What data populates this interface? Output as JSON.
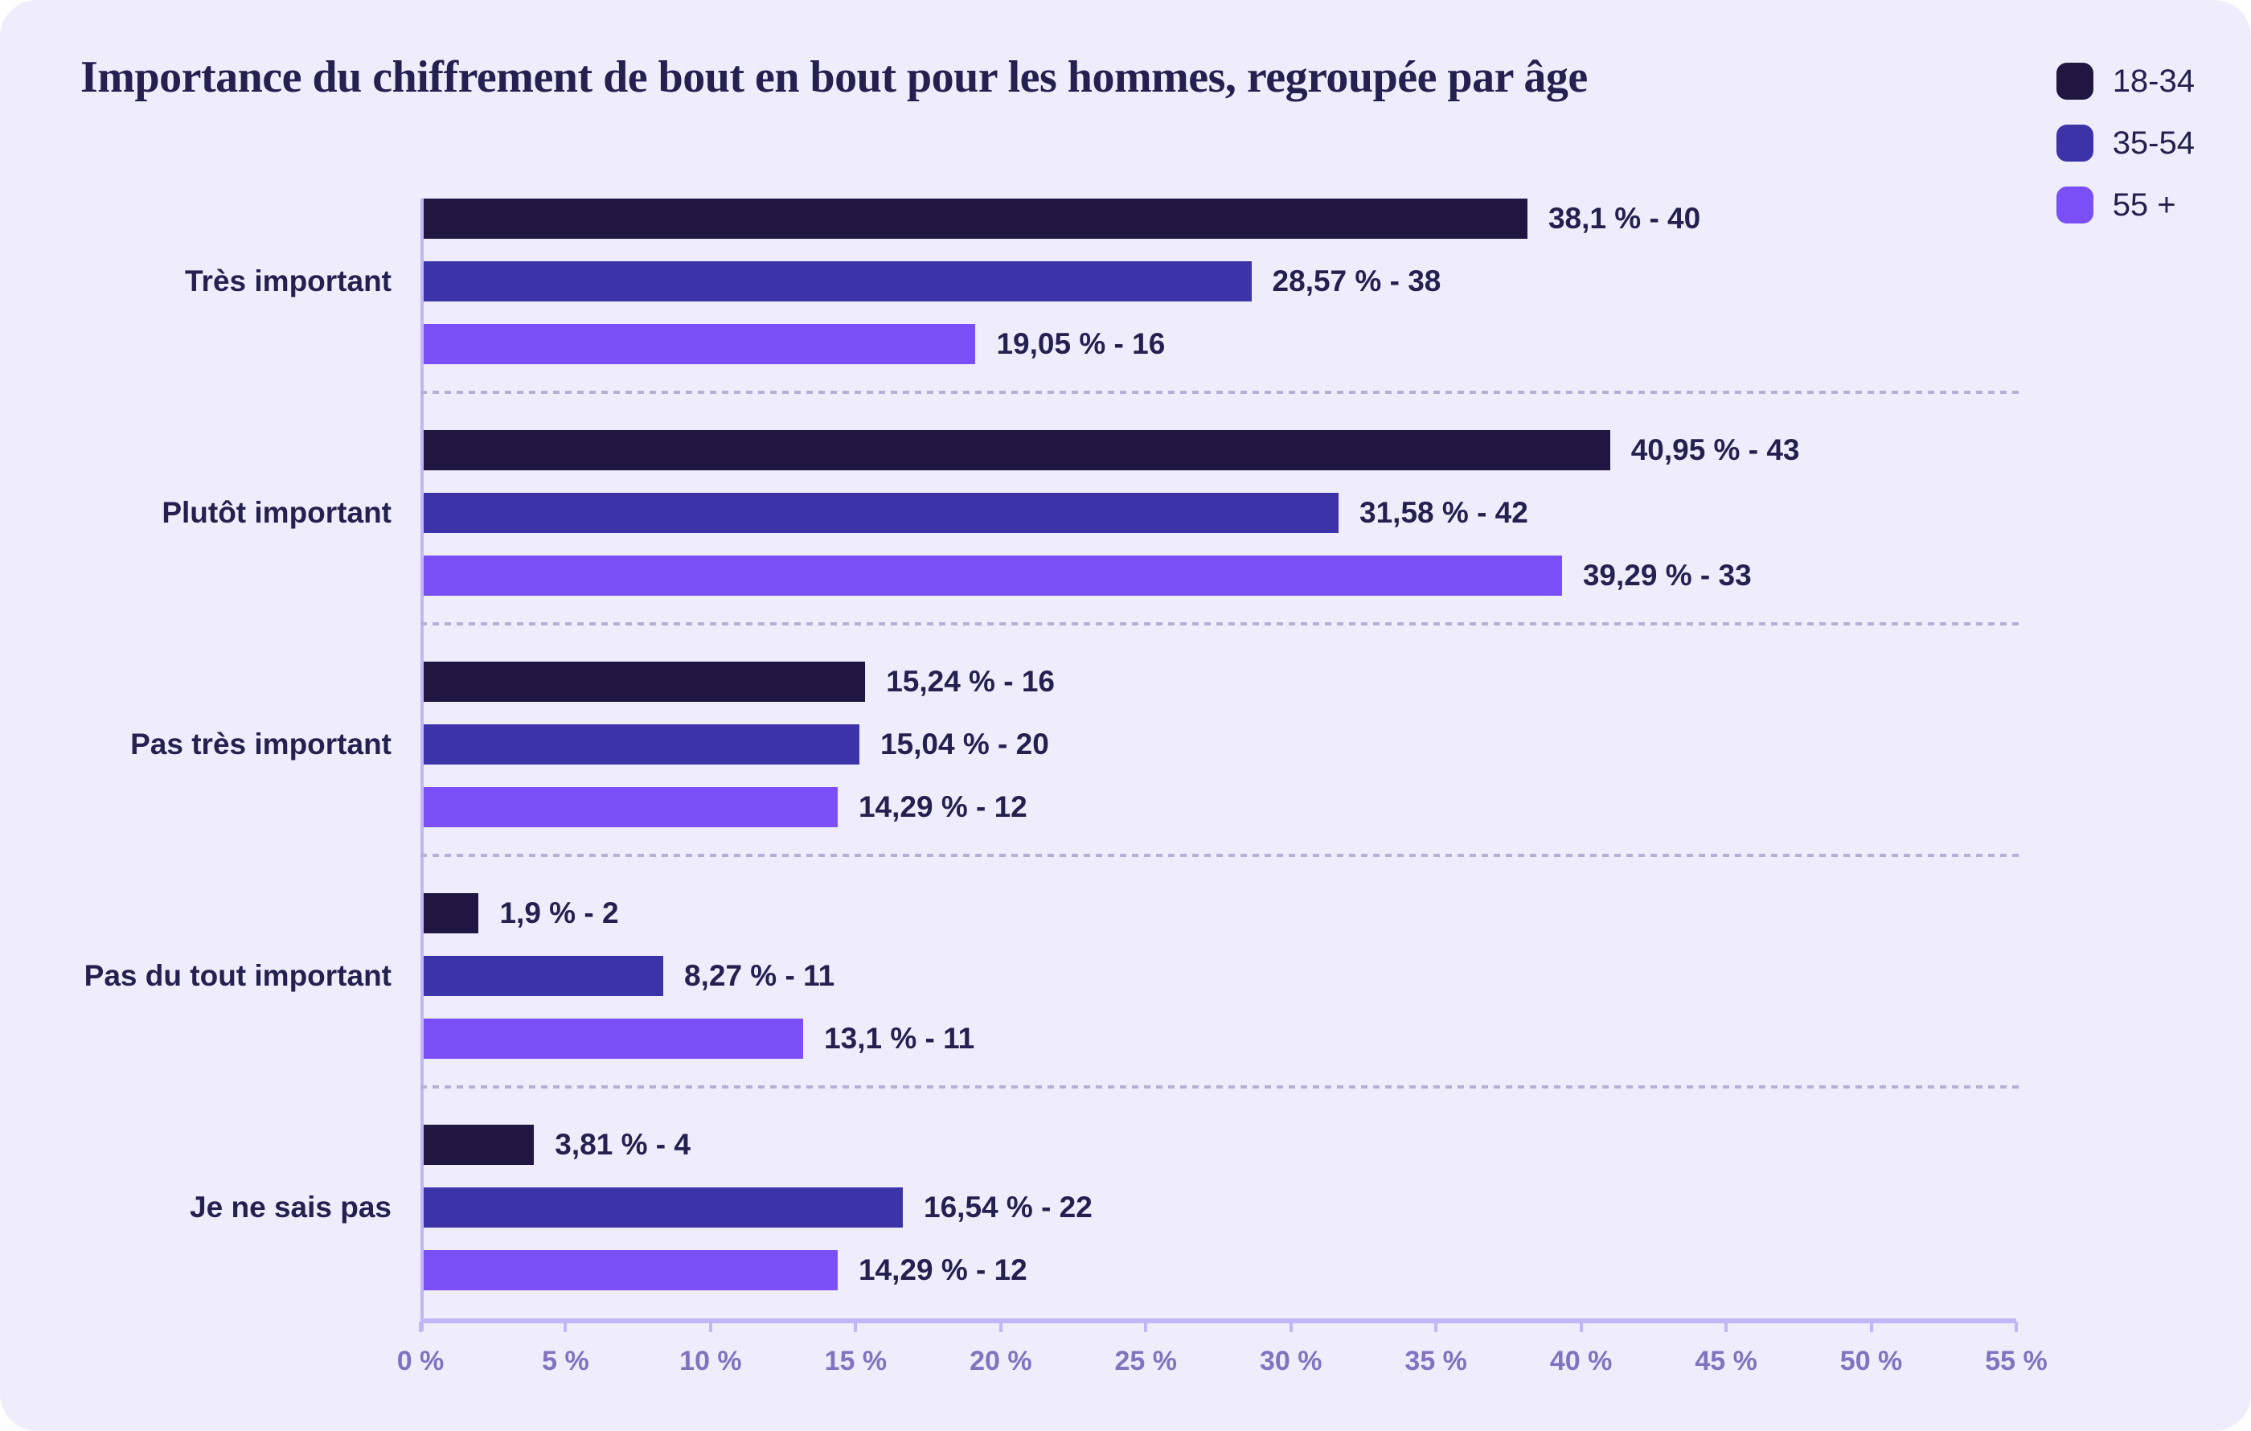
{
  "title": "Importance du chiffrement de bout en bout pour les hommes, regroupée par âge",
  "colors": {
    "card_bg": "#efedfb",
    "page_bg": "#ffffff",
    "series_18_34": "#1f1742",
    "series_35_54": "#3d33a9",
    "series_55_plus": "#7a4ff7",
    "text_dark": "#262050",
    "axis": "#c1b6f8",
    "tick_text": "#8173c0",
    "separator": "#b7afd6"
  },
  "legend": {
    "position": "top-right",
    "items": [
      {
        "label": "18-34",
        "color": "#1f1742"
      },
      {
        "label": "35-54",
        "color": "#3d33a9"
      },
      {
        "label": "55 +",
        "color": "#7a4ff7"
      }
    ]
  },
  "chart_data": {
    "type": "bar",
    "orientation": "horizontal",
    "title": "Importance du chiffrement de bout en bout pour les hommes, regroupée par âge",
    "categories": [
      "Très important",
      "Plutôt important",
      "Pas très important",
      "Pas du tout important",
      "Je ne sais pas"
    ],
    "series": [
      {
        "name": "18-34",
        "color": "#1f1742",
        "values": [
          38.1,
          40.95,
          15.24,
          1.9,
          3.81
        ],
        "counts": [
          40,
          43,
          16,
          2,
          4
        ]
      },
      {
        "name": "35-54",
        "color": "#3d33a9",
        "values": [
          28.57,
          31.58,
          15.04,
          8.27,
          16.54
        ],
        "counts": [
          38,
          42,
          20,
          11,
          22
        ]
      },
      {
        "name": "55 +",
        "color": "#7a4ff7",
        "values": [
          19.05,
          39.29,
          14.29,
          13.1,
          14.29
        ],
        "counts": [
          16,
          33,
          12,
          11,
          12
        ]
      }
    ],
    "bar_labels": [
      [
        "38,1 % - 40",
        "28,57 % - 38",
        "19,05 % - 16"
      ],
      [
        "40,95 % - 43",
        "31,58 % - 42",
        "39,29 % - 33"
      ],
      [
        "15,24 % - 16",
        "15,04 % - 20",
        "14,29 % - 12"
      ],
      [
        "1,9 % - 2",
        "8,27 % - 11",
        "13,1 % - 11"
      ],
      [
        "3,81 % - 4",
        "16,54 % - 22",
        "14,29 % - 12"
      ]
    ],
    "x_ticks": [
      "0 %",
      "5 %",
      "10 %",
      "15 %",
      "20 %",
      "25 %",
      "30 %",
      "35 %",
      "40 %",
      "45 %",
      "50 %",
      "55 %"
    ],
    "xlim": [
      0,
      55
    ],
    "xlabel": "",
    "ylabel": "",
    "grid": "dashed horizontal separators between category groups",
    "legend_position": "top-right"
  }
}
